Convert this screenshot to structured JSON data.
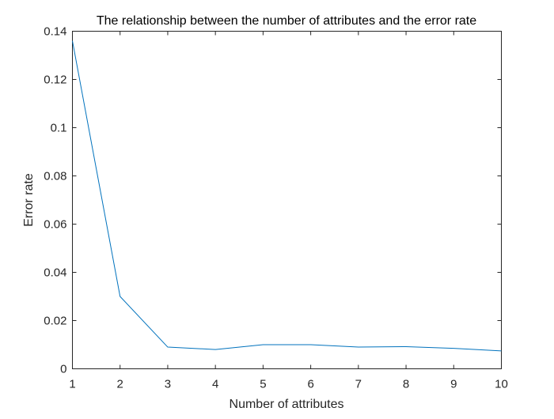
{
  "chart_data": {
    "type": "line",
    "title": "The relationship between the number of attributes and the error rate",
    "xlabel": "Number of attributes",
    "ylabel": "Error rate",
    "xlim": [
      1,
      10
    ],
    "ylim": [
      0,
      0.14
    ],
    "grid": false,
    "x": [
      1,
      2,
      3,
      4,
      5,
      6,
      7,
      8,
      9,
      10
    ],
    "series": [
      {
        "values": [
          0.136,
          0.03,
          0.009,
          0.008,
          0.01,
          0.01,
          0.009,
          0.0092,
          0.0085,
          0.0074
        ],
        "color": "#0072BD"
      }
    ],
    "xticks": [
      "1",
      "2",
      "3",
      "4",
      "5",
      "6",
      "7",
      "8",
      "9",
      "10"
    ],
    "yticks": [
      "0",
      "0.02",
      "0.04",
      "0.06",
      "0.08",
      "0.1",
      "0.12",
      "0.14"
    ],
    "ytick_values": [
      0,
      0.02,
      0.04,
      0.06,
      0.08,
      0.1,
      0.12,
      0.14
    ],
    "axis_color": "#262626"
  }
}
